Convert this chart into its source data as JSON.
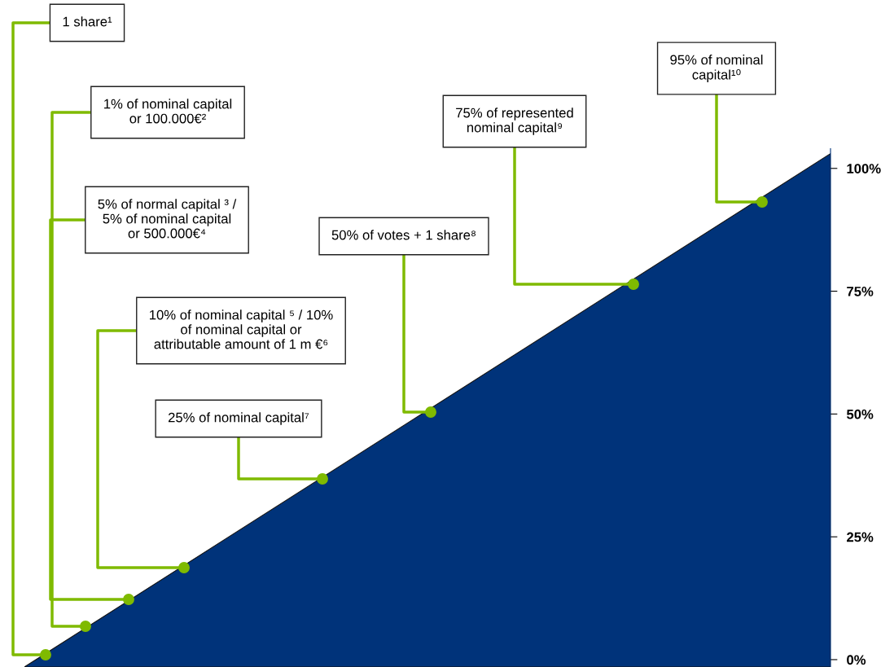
{
  "chart_data": {
    "type": "area",
    "categories": [
      null,
      null
    ],
    "values": [
      -1.5,
      103
    ],
    "color": "#00337a",
    "ylim": [
      -1.5,
      104
    ],
    "yticks": [
      {
        "value": 0,
        "label": "0%"
      },
      {
        "value": 25,
        "label": "25%"
      },
      {
        "value": 50,
        "label": "50%"
      },
      {
        "value": 75,
        "label": "75%"
      },
      {
        "value": 100,
        "label": "100%"
      }
    ],
    "tick_labels": "y",
    "grid": false,
    "legend": false,
    "annotations": [
      "1 share¹",
      "1% of nominal capital\nor 100.000€²",
      "5% of normal capital ³ /\n5% of nominal capital\nor 500.000€⁴",
      "10% of nominal capital ⁵ / 10%\nof nominal capital or\nattributable amount of 1 m €⁶",
      "25% of nominal capital⁷",
      "50% of votes + 1 share⁸",
      "75% of represented\nnominal capital⁹",
      "95% of nominal\ncapital¹⁰"
    ]
  }
}
